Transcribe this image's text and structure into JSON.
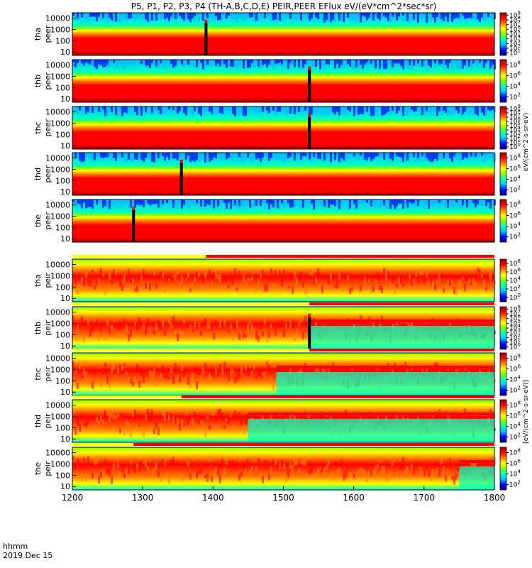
{
  "figure": {
    "title": "P5, P1, P2, P3, P4 (TH-A,B,C,D,E) PEIR,PEER EFlux eV/(eV*cm^2*sec*sr)",
    "cbar_unit_top": "eV/(cm^2-s-sr-eV)",
    "cbar_unit_bottom": "[eV/(cm^2-s-sr-eV)]",
    "time_label": "hhmm",
    "date_label": "2019 Dec 15"
  },
  "chart_data": {
    "type": "heatmap",
    "x": {
      "label": "hhmm",
      "range": [
        1200,
        1800
      ],
      "ticks": [
        "1200",
        "1300",
        "1400",
        "1500",
        "1600",
        "1700",
        "1800"
      ]
    },
    "y_scale": "log",
    "y_range_eV": [
      5,
      30000
    ],
    "y_ticks": [
      "10",
      "100",
      "1000",
      "10000"
    ],
    "colormap": [
      "#00007f",
      "#0000ff",
      "#00bfff",
      "#00ffbf",
      "#7fff00",
      "#ffff00",
      "#ff7f00",
      "#ff0000",
      "#9a0000"
    ],
    "panels": [
      {
        "probe": "tha",
        "species": "peer",
        "cbar_ticks": [
          "10^1",
          "10^2",
          "10^3",
          "10^4",
          "10^5",
          "10^6",
          "10^7",
          "10^8",
          "10^9"
        ],
        "gap_time": 1390,
        "shift_time": null
      },
      {
        "probe": "thb",
        "species": "peer",
        "cbar_ticks": [
          "10^2",
          "10^4",
          "10^6",
          "10^8"
        ],
        "gap_time": 1537,
        "shift_time": null
      },
      {
        "probe": "thc",
        "species": "peer",
        "cbar_ticks": [
          "10^0",
          "10^1",
          "10^2",
          "10^3",
          "10^4",
          "10^5",
          "10^6",
          "10^7",
          "10^8",
          "10^9"
        ],
        "gap_time": 1537,
        "shift_time": null
      },
      {
        "probe": "thd",
        "species": "peer",
        "cbar_ticks": [
          "10^2",
          "10^4",
          "10^6",
          "10^8"
        ],
        "gap_time": 1355,
        "shift_time": null
      },
      {
        "probe": "the",
        "species": "peer",
        "cbar_ticks": [
          "10^2",
          "10^4",
          "10^6",
          "10^8"
        ],
        "gap_time": 1287,
        "shift_time": null
      },
      {
        "probe": "tha",
        "species": "peir",
        "cbar_ticks": [
          "10^0",
          "10^2",
          "10^4",
          "10^6",
          "10^8"
        ],
        "gap_time": null,
        "shift_time": null,
        "mode_bar_switch": 1390
      },
      {
        "probe": "thb",
        "species": "peir",
        "cbar_ticks": [
          "10^0",
          "10^1",
          "10^2",
          "10^3",
          "10^4",
          "10^5",
          "10^6",
          "10^7",
          "10^8"
        ],
        "gap_time": 1537,
        "shift_time": 1537,
        "mode_bar_switch": 1537
      },
      {
        "probe": "thc",
        "species": "peir",
        "cbar_ticks": [
          "10^2",
          "10^4",
          "10^6",
          "10^8"
        ],
        "gap_time": null,
        "shift_time": 1490,
        "mode_bar_switch": 1537
      },
      {
        "probe": "thd",
        "species": "peir",
        "cbar_ticks": [
          "10^2",
          "10^4",
          "10^6",
          "10^8"
        ],
        "gap_time": null,
        "shift_time": 1450,
        "mode_bar_switch": 1355
      },
      {
        "probe": "the",
        "species": "peir",
        "cbar_ticks": [
          "10^2",
          "10^4",
          "10^6",
          "10^8"
        ],
        "gap_time": null,
        "shift_time": 1750,
        "mode_bar_switch": 1287
      }
    ]
  }
}
